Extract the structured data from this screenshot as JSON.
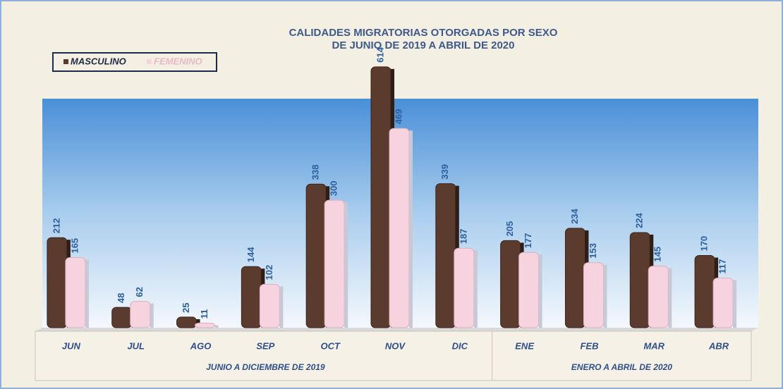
{
  "chart_data": {
    "type": "bar",
    "title": "CALIDADES MIGRATORIAS OTORGADAS POR SEXO",
    "subtitle": "DE JUNIO DE 2019 A ABRIL DE 2020",
    "categories": [
      "JUN",
      "JUL",
      "AGO",
      "SEP",
      "OCT",
      "NOV",
      "DIC",
      "ENE",
      "FEB",
      "MAR",
      "ABR"
    ],
    "groups": [
      {
        "label": "JUNIO A DICIEMBRE DE 2019",
        "count": 7
      },
      {
        "label": "ENERO A ABRIL DE 2020",
        "count": 4
      }
    ],
    "series": [
      {
        "name": "MASCULINO",
        "color": "#5b3b2e",
        "values": [
          212,
          48,
          25,
          144,
          338,
          614,
          339,
          205,
          234,
          224,
          170
        ]
      },
      {
        "name": "FEMENINO",
        "color": "#f6d3df",
        "values": [
          165,
          62,
          11,
          102,
          300,
          469,
          187,
          177,
          153,
          145,
          117
        ]
      }
    ],
    "ylim": [
      0,
      700
    ]
  }
}
